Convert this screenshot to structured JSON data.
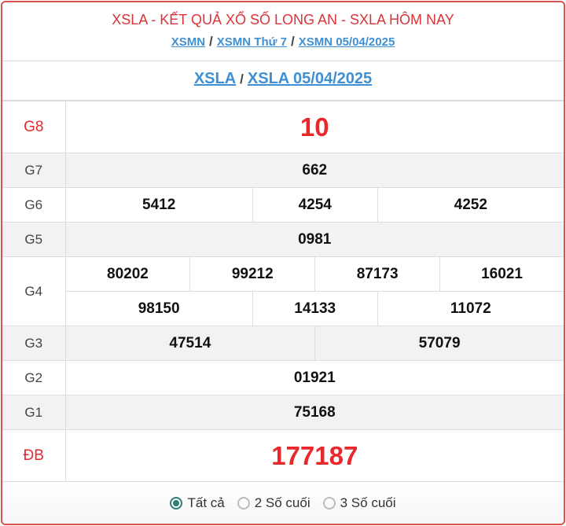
{
  "header": {
    "title": "XSLA - KẾT QUẢ XỔ SỐ LONG AN - SXLA HÔM NAY",
    "crumbs": [
      "XSMN",
      "XSMN Thứ 7",
      "XSMN 05/04/2025"
    ],
    "sep": "/"
  },
  "sub": {
    "links": [
      "XSLA",
      "XSLA 05/04/2025"
    ],
    "sep": "/"
  },
  "prizes": {
    "g8": {
      "label": "G8",
      "values": [
        "10"
      ]
    },
    "g7": {
      "label": "G7",
      "values": [
        "662"
      ]
    },
    "g6": {
      "label": "G6",
      "values": [
        "5412",
        "4254",
        "4252"
      ]
    },
    "g5": {
      "label": "G5",
      "values": [
        "0981"
      ]
    },
    "g4": {
      "label": "G4",
      "values": [
        "80202",
        "99212",
        "87173",
        "16021",
        "98150",
        "14133",
        "11072"
      ]
    },
    "g3": {
      "label": "G3",
      "values": [
        "47514",
        "57079"
      ]
    },
    "g2": {
      "label": "G2",
      "values": [
        "01921"
      ]
    },
    "g1": {
      "label": "G1",
      "values": [
        "75168"
      ]
    },
    "db": {
      "label": "ĐB",
      "values": [
        "177187"
      ]
    }
  },
  "filter": {
    "options": [
      "Tất cả",
      "2 Số cuối",
      "3 Số cuối"
    ],
    "selected": "Tất cả"
  },
  "colors": {
    "accent_red": "#e8282b",
    "link": "#3f8fd2",
    "radio": "#2e7d74",
    "border": "#d9534f"
  }
}
